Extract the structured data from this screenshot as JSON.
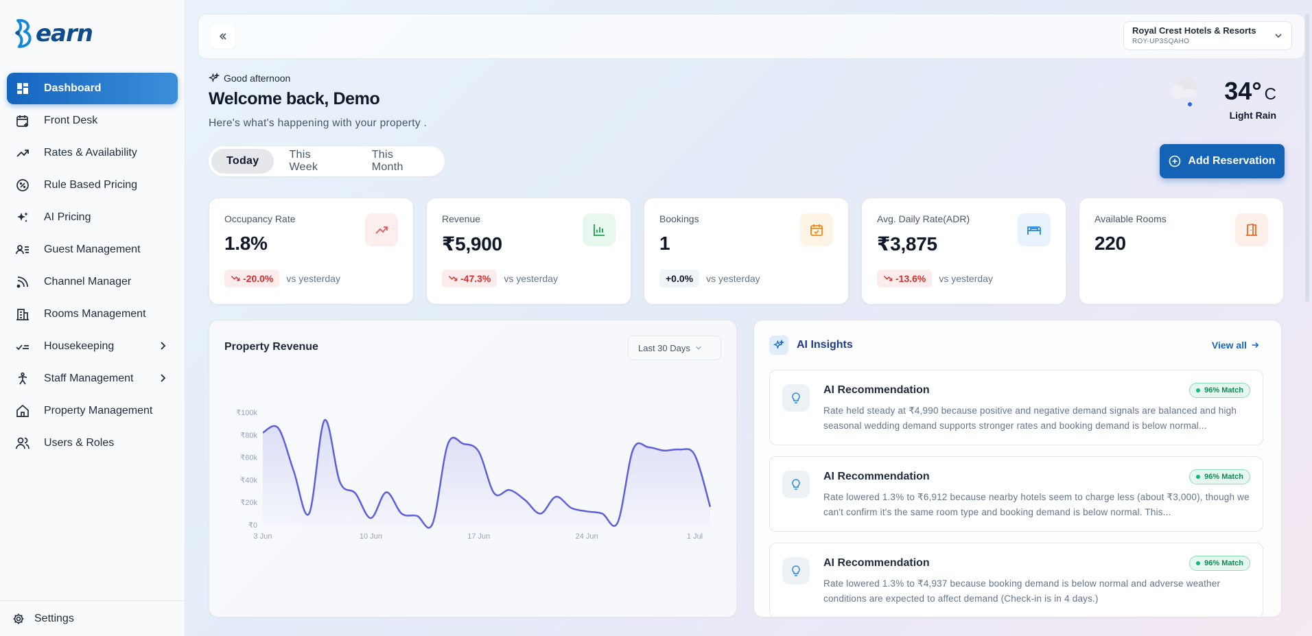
{
  "brand": {
    "name": "earn"
  },
  "sidebar": {
    "items": [
      {
        "label": "Dashboard",
        "icon": "grid-icon",
        "active": true
      },
      {
        "label": "Front Desk",
        "icon": "calendar-plus-icon"
      },
      {
        "label": "Rates & Availability",
        "icon": "trending-up-icon"
      },
      {
        "label": "Rule Based Pricing",
        "icon": "percent-icon"
      },
      {
        "label": "AI Pricing",
        "icon": "sparkles-icon"
      },
      {
        "label": "Guest Management",
        "icon": "user-list-icon"
      },
      {
        "label": "Channel Manager",
        "icon": "rss-icon"
      },
      {
        "label": "Rooms Management",
        "icon": "building-icon"
      },
      {
        "label": "Housekeeping",
        "icon": "checklist-icon",
        "expandable": true
      },
      {
        "label": "Staff Management",
        "icon": "person-icon",
        "expandable": true
      },
      {
        "label": "Property Management",
        "icon": "home-icon"
      },
      {
        "label": "Users & Roles",
        "icon": "users-icon"
      }
    ],
    "settings_label": "Settings"
  },
  "topbar": {
    "property_name": "Royal Crest Hotels & Resorts",
    "property_code": "ROY-UP3SQAHO"
  },
  "header": {
    "greeting": "Good afternoon",
    "welcome": "Welcome back, Demo",
    "subtitle": "Here's what's happening with your property ."
  },
  "weather": {
    "temp": "34°",
    "unit": "C",
    "condition": "Light Rain"
  },
  "range_tabs": [
    "Today",
    "This Week",
    "This Month"
  ],
  "add_reservation_label": "Add Reservation",
  "kpis": [
    {
      "label": "Occupancy Rate",
      "value": "1.8%",
      "delta": "-20.0%",
      "delta_type": "neg",
      "delta_text": "vs yesterday",
      "icon": "trending-up-icon",
      "color": "#e05a5a",
      "bg": "#fdeeee"
    },
    {
      "label": "Revenue",
      "value": "₹5,900",
      "delta": "-47.3%",
      "delta_type": "neg",
      "delta_text": "vs yesterday",
      "icon": "bar-chart-icon",
      "color": "#16a34a",
      "bg": "#e9f8ef"
    },
    {
      "label": "Bookings",
      "value": "1",
      "delta": "+0.0%",
      "delta_type": "neu",
      "delta_text": "vs yesterday",
      "icon": "calendar-check-icon",
      "color": "#ea8a1a",
      "bg": "#fdf4e5"
    },
    {
      "label": "Avg. Daily Rate(ADR)",
      "value": "₹3,875",
      "delta": "-13.6%",
      "delta_type": "neg",
      "delta_text": "vs yesterday",
      "icon": "bed-icon",
      "color": "#1e88e5",
      "bg": "#e7f2fc"
    },
    {
      "label": "Available Rooms",
      "value": "220",
      "icon": "door-icon",
      "color": "#e86a2c",
      "bg": "#fdf0e8"
    }
  ],
  "revenue_panel": {
    "title": "Property Revenue",
    "range": "Last 30 Days"
  },
  "chart_data": {
    "type": "area",
    "title": "Property Revenue",
    "y_ticks": [
      "₹0",
      "₹20k",
      "₹40k",
      "₹60k",
      "₹80k",
      "₹100k"
    ],
    "ylim": [
      0,
      100000
    ],
    "x_ticks": [
      "3 Jun",
      "10 Jun",
      "17 Jun",
      "24 Jun",
      "1 Jul"
    ],
    "x": [
      "3 Jun",
      "4 Jun",
      "5 Jun",
      "6 Jun",
      "7 Jun",
      "8 Jun",
      "9 Jun",
      "10 Jun",
      "11 Jun",
      "12 Jun",
      "13 Jun",
      "14 Jun",
      "15 Jun",
      "16 Jun",
      "17 Jun",
      "18 Jun",
      "19 Jun",
      "20 Jun",
      "21 Jun",
      "22 Jun",
      "23 Jun",
      "24 Jun",
      "25 Jun",
      "26 Jun",
      "27 Jun",
      "28 Jun",
      "29 Jun",
      "30 Jun",
      "1 Jul",
      "2 Jul"
    ],
    "values": [
      82000,
      86000,
      48000,
      10000,
      93000,
      38000,
      28000,
      6000,
      29000,
      10000,
      8000,
      1000,
      72000,
      72000,
      65000,
      28000,
      31000,
      22000,
      10000,
      25000,
      15000,
      12000,
      10000,
      2000,
      67000,
      69000,
      66000,
      67000,
      62000,
      16000
    ],
    "color": "#5b5fdc"
  },
  "insights": {
    "title": "AI Insights",
    "view_all": "View all",
    "items": [
      {
        "title": "AI Recommendation",
        "match": "96% Match",
        "text": "Rate held steady at ₹4,990 because positive and negative demand signals are balanced and high seasonal wedding demand supports stronger rates and booking demand is below normal..."
      },
      {
        "title": "AI Recommendation",
        "match": "96% Match",
        "text": "Rate lowered 1.3% to ₹6,912 because nearby hotels seem to charge less (about ₹3,000), though we can't confirm it's the same room type and booking demand is below normal. This..."
      },
      {
        "title": "AI Recommendation",
        "match": "96% Match",
        "text": "Rate lowered 1.3% to ₹4,937 because booking demand is below normal and adverse weather conditions are expected to affect demand (Check-in is in 4 days.)"
      }
    ]
  }
}
